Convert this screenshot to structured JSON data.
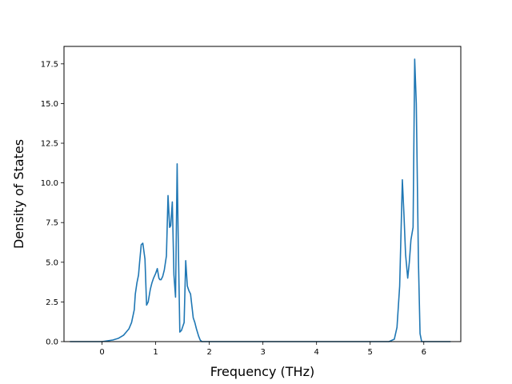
{
  "chart_data": {
    "type": "line",
    "title": "",
    "xlabel": "Frequency (THz)",
    "ylabel": "Density of States",
    "xlim": [
      -0.71,
      6.69
    ],
    "ylim": [
      0,
      18.6
    ],
    "grid": false,
    "legend": "none",
    "xticks": [
      0,
      1,
      2,
      3,
      4,
      5,
      6
    ],
    "yticks": [
      0.0,
      2.5,
      5.0,
      7.5,
      10.0,
      12.5,
      15.0,
      17.5
    ],
    "xtick_labels": [
      "0",
      "1",
      "2",
      "3",
      "4",
      "5",
      "6"
    ],
    "ytick_labels": [
      "0.0",
      "2.5",
      "5.0",
      "7.5",
      "10.0",
      "12.5",
      "15.0",
      "17.5"
    ],
    "series": [
      {
        "color": "#1f77b4",
        "x": [
          -0.6,
          0.0,
          0.1,
          0.2,
          0.3,
          0.4,
          0.45,
          0.5,
          0.55,
          0.6,
          0.62,
          0.65,
          0.68,
          0.7,
          0.73,
          0.76,
          0.8,
          0.83,
          0.86,
          0.9,
          0.93,
          0.96,
          1.0,
          1.03,
          1.06,
          1.08,
          1.1,
          1.13,
          1.16,
          1.2,
          1.23,
          1.26,
          1.28,
          1.31,
          1.34,
          1.37,
          1.4,
          1.42,
          1.45,
          1.48,
          1.51,
          1.53,
          1.56,
          1.59,
          1.62,
          1.65,
          1.68,
          1.7,
          1.73,
          1.76,
          1.8,
          1.83,
          1.86,
          1.9,
          1.93,
          1.96,
          2.0,
          2.05,
          2.1,
          3.0,
          4.0,
          5.0,
          5.35,
          5.45,
          5.5,
          5.55,
          5.58,
          5.6,
          5.63,
          5.66,
          5.7,
          5.73,
          5.76,
          5.8,
          5.83,
          5.86,
          5.9,
          5.93,
          5.96,
          6.0,
          6.5
        ],
        "y": [
          0,
          0,
          0.05,
          0.1,
          0.2,
          0.4,
          0.6,
          0.8,
          1.2,
          2.0,
          3.0,
          3.7,
          4.2,
          5.0,
          6.1,
          6.2,
          5.2,
          2.3,
          2.5,
          3.3,
          3.7,
          4.0,
          4.3,
          4.6,
          4.0,
          3.9,
          3.9,
          4.1,
          4.5,
          5.4,
          9.2,
          7.2,
          7.3,
          8.8,
          4.2,
          2.8,
          11.2,
          6.5,
          0.6,
          0.7,
          1.0,
          1.2,
          5.1,
          3.5,
          3.2,
          3.0,
          2.1,
          1.5,
          1.2,
          0.8,
          0.35,
          0.1,
          0,
          0,
          0,
          0,
          0,
          0,
          0,
          0,
          0,
          0,
          0,
          0.15,
          0.9,
          3.5,
          7.5,
          10.2,
          8.0,
          5.5,
          4.0,
          5.0,
          6.4,
          7.2,
          17.8,
          15.0,
          5.0,
          0.5,
          0,
          0,
          0
        ]
      }
    ]
  }
}
